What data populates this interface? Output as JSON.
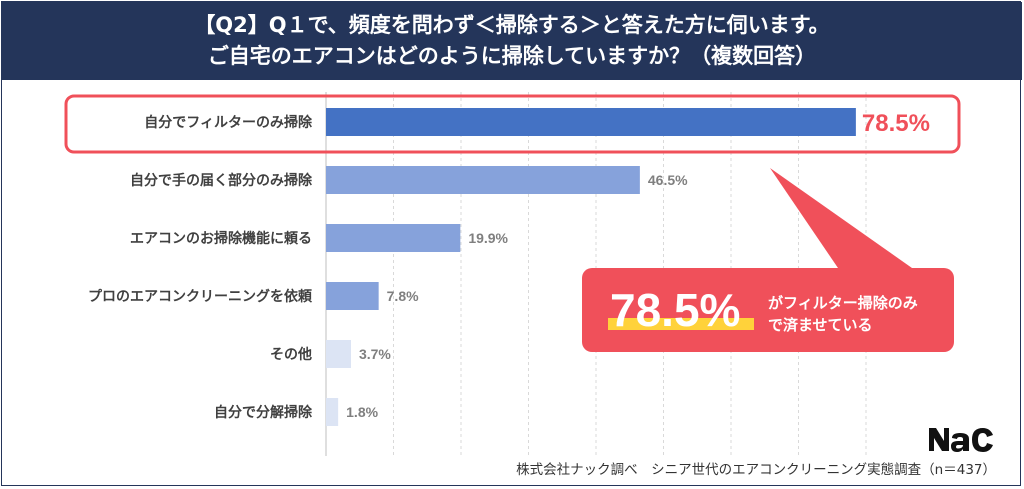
{
  "header": {
    "line1": "【Q2】Q１で、頻度を問わず＜掃除する＞と答えた方に伺います。",
    "line2": "ご自宅のエアコンはどのように掃除していますか？（複数回答）"
  },
  "chart_data": {
    "type": "bar",
    "orientation": "horizontal",
    "categories": [
      "自分でフィルターのみ掃除",
      "自分で手の届く部分のみ掃除",
      "エアコンのお掃除機能に頼る",
      "プロのエアコンクリーニングを依頼",
      "その他",
      "自分で分解掃除"
    ],
    "values": [
      78.5,
      46.5,
      19.9,
      7.8,
      3.7,
      1.8
    ],
    "value_labels": [
      "78.5%",
      "46.5%",
      "19.9%",
      "7.8%",
      "3.7%",
      "1.8%"
    ],
    "xlim": [
      0,
      80
    ],
    "grid": true,
    "highlight_index": 0,
    "colors": {
      "highlight": "#4472c4",
      "mid": "#86a2db",
      "light": "#dce4f4",
      "accent": "#f0505a",
      "header_bg": "#24355a"
    }
  },
  "callout": {
    "value": "78.5%",
    "text_line1": "がフィルター掃除のみ",
    "text_line2": "で済ませている"
  },
  "footer": {
    "source": "株式会社ナック調べ　シニア世代のエアコンクリーニング実態調査（n＝437）"
  },
  "logo": {
    "text": "NAC"
  }
}
